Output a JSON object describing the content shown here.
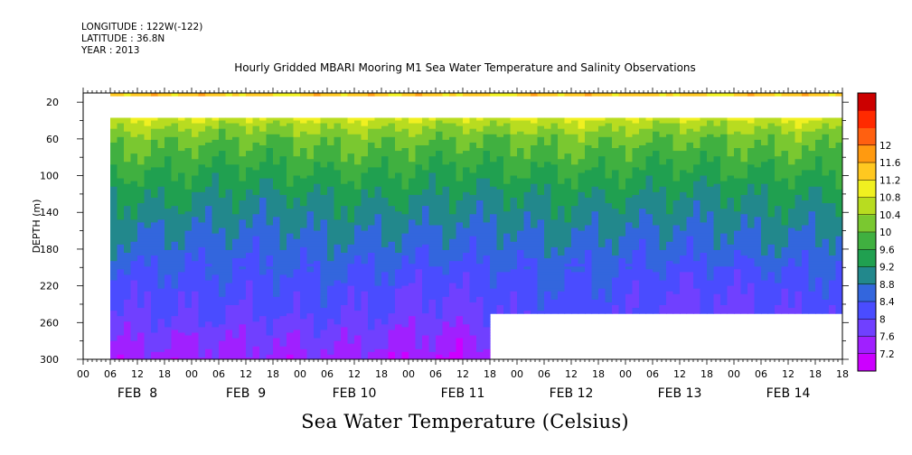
{
  "header": {
    "longitude": "LONGITUDE : 122W(-122)",
    "latitude": "LATITUDE : 36.8N",
    "year": "YEAR : 2013"
  },
  "chart_data": {
    "type": "heatmap",
    "title": "Hourly Gridded MBARI Mooring M1 Sea Water Temperature and Salinity Observations",
    "subtitle": "Sea Water Temperature (Celsius)",
    "xlabel": "",
    "ylabel": "DEPTH (m)",
    "x_range_hours": [
      0,
      168
    ],
    "ylim": [
      300,
      10
    ],
    "y_ticks": [
      20,
      60,
      100,
      140,
      180,
      220,
      260,
      300
    ],
    "x_tick_labels": [
      "00",
      "06",
      "12",
      "18",
      "00",
      "06",
      "12",
      "18",
      "00",
      "06",
      "12",
      "18",
      "00",
      "06",
      "12",
      "18",
      "00",
      "06",
      "12",
      "18",
      "00",
      "06",
      "12",
      "18",
      "00",
      "06",
      "12",
      "18",
      "18"
    ],
    "x_day_labels": [
      "FEB  8",
      "FEB  9",
      "FEB 10",
      "FEB 11",
      "FEB 12",
      "FEB 13",
      "FEB 14"
    ],
    "colorbar": {
      "levels": [
        7.2,
        7.6,
        8,
        8.4,
        8.8,
        9.2,
        9.6,
        10,
        10.4,
        10.8,
        11.2,
        11.6,
        12
      ],
      "labels": [
        "7.2",
        "7.6",
        "8",
        "8.4",
        "8.8",
        "9.2",
        "9.6",
        "10",
        "10.4",
        "10.8",
        "11.2",
        "11.6",
        "12"
      ],
      "colors": [
        "#cc00ff",
        "#a020ff",
        "#7040ff",
        "#4a4cff",
        "#3366dd",
        "#22888c",
        "#20a050",
        "#40b040",
        "#7ac830",
        "#b8dc20",
        "#f0f020",
        "#ffc820",
        "#ff9a10",
        "#ff6010",
        "#ff2a00",
        "#cc0000"
      ]
    },
    "data_coverage": {
      "start_hour": 6,
      "end_hour": 168,
      "no_data_depth_band_m": [
        13,
        36
      ],
      "deep_data_end_hour": 90,
      "shallow_max_depth_after_end_m": 250
    },
    "depth_temperature_profile": [
      {
        "depth": 10,
        "temp": 11.4
      },
      {
        "depth": 13,
        "temp": 11.3
      },
      {
        "depth": 36,
        "temp": 10.9
      },
      {
        "depth": 45,
        "temp": 10.5
      },
      {
        "depth": 60,
        "temp": 10.1
      },
      {
        "depth": 80,
        "temp": 9.8
      },
      {
        "depth": 100,
        "temp": 9.5
      },
      {
        "depth": 130,
        "temp": 9.1
      },
      {
        "depth": 160,
        "temp": 8.8
      },
      {
        "depth": 190,
        "temp": 8.5
      },
      {
        "depth": 220,
        "temp": 8.2
      },
      {
        "depth": 250,
        "temp": 8.0
      },
      {
        "depth": 280,
        "temp": 7.6
      },
      {
        "depth": 300,
        "temp": 7.4
      }
    ]
  }
}
